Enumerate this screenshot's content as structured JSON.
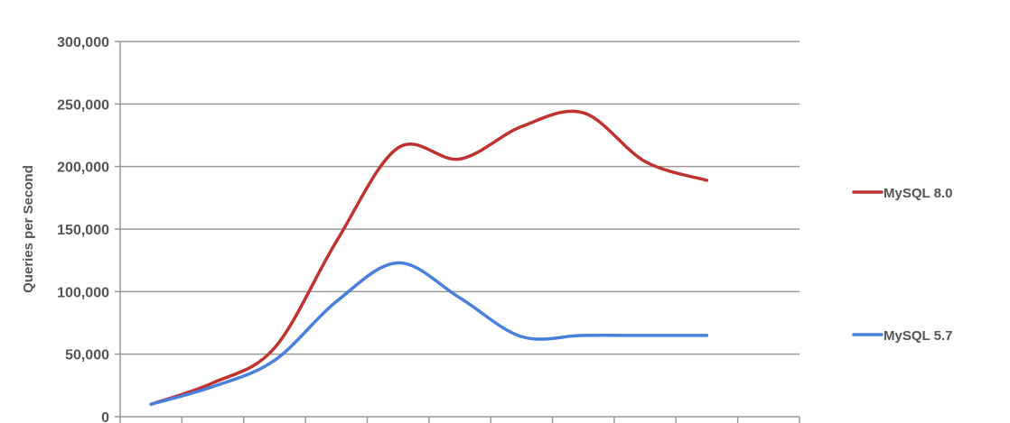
{
  "chart_data": {
    "type": "line",
    "title": "",
    "xlabel": "",
    "ylabel": "Queries per Second",
    "ylim": [
      0,
      300000
    ],
    "y_ticks": [
      {
        "value": 0,
        "label": "0"
      },
      {
        "value": 50000,
        "label": "50,000"
      },
      {
        "value": 100000,
        "label": "100,000"
      },
      {
        "value": 150000,
        "label": "150,000"
      },
      {
        "value": 200000,
        "label": "200,000"
      },
      {
        "value": 250000,
        "label": "250,000"
      },
      {
        "value": 300000,
        "label": "300,000"
      }
    ],
    "grid": true,
    "legend_position": "right",
    "x": [
      1,
      2,
      3,
      4,
      5,
      6,
      7,
      8,
      9,
      10,
      11
    ],
    "series": [
      {
        "name": "MySQL 8.0",
        "color": "#c0322e",
        "values": [
          10000,
          27000,
          55000,
          140000,
          215000,
          206000,
          232000,
          243000,
          204000,
          189000,
          189000
        ],
        "points_shown": 10
      },
      {
        "name": "MySQL 5.7",
        "color": "#4a7fdc",
        "values": [
          10000,
          24000,
          45000,
          92000,
          123000,
          95000,
          64000,
          65000,
          65000,
          65000,
          65000
        ],
        "points_shown": 10
      }
    ]
  }
}
